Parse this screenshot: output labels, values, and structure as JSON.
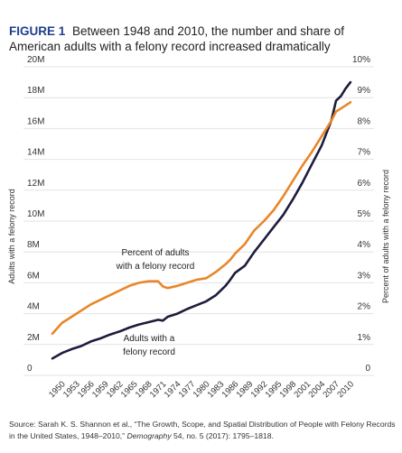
{
  "figure": {
    "label": "FIGURE 1",
    "title": "Between 1948 and 2010, the number and share of American adults with a felony record increased dramatically"
  },
  "source": {
    "prefix": "Source: Sarah K. S. Shannon et al., “The Growth, Scope, and Spatial Distribution of People with Felony Records in the United States, 1948–2010,” ",
    "journal": "Demography",
    "suffix": " 54, no. 5 (2017): 1795–1818."
  },
  "chart_data": {
    "type": "line",
    "ylabel": "Adults with a felony record",
    "y2label": "Percent of adults with a felony record",
    "ylim": [
      0,
      20000000
    ],
    "y2lim": [
      0,
      10
    ],
    "y_ticks": [
      {
        "value": 0,
        "label": "0"
      },
      {
        "value": 2000000,
        "label": "2M"
      },
      {
        "value": 4000000,
        "label": "4M"
      },
      {
        "value": 6000000,
        "label": "6M"
      },
      {
        "value": 8000000,
        "label": "8M"
      },
      {
        "value": 10000000,
        "label": "10M"
      },
      {
        "value": 12000000,
        "label": "12M"
      },
      {
        "value": 14000000,
        "label": "14M"
      },
      {
        "value": 16000000,
        "label": "16M"
      },
      {
        "value": 18000000,
        "label": "18M"
      },
      {
        "value": 20000000,
        "label": "20M"
      }
    ],
    "y2_ticks": [
      {
        "value": 0,
        "label": "0"
      },
      {
        "value": 1,
        "label": "1%"
      },
      {
        "value": 2,
        "label": "2%"
      },
      {
        "value": 3,
        "label": "3%"
      },
      {
        "value": 4,
        "label": "4%"
      },
      {
        "value": 5,
        "label": "5%"
      },
      {
        "value": 6,
        "label": "6%"
      },
      {
        "value": 7,
        "label": "7%"
      },
      {
        "value": 8,
        "label": "8%"
      },
      {
        "value": 9,
        "label": "9%"
      },
      {
        "value": 10,
        "label": "10%"
      }
    ],
    "x_range": [
      1948,
      2010
    ],
    "x_ticks": [
      1950,
      1953,
      1956,
      1959,
      1962,
      1965,
      1968,
      1971,
      1974,
      1977,
      1980,
      1983,
      1986,
      1989,
      1992,
      1995,
      1998,
      2001,
      2004,
      2007,
      2010
    ],
    "grid": "horizontal",
    "series": [
      {
        "name": "Adults with a felony record",
        "axis": "left",
        "color": "#1c1c3c",
        "label_lines": [
          "Adults with a",
          "felony record"
        ],
        "x": [
          1948,
          1950,
          1952,
          1954,
          1956,
          1958,
          1960,
          1962,
          1964,
          1966,
          1968,
          1970,
          1971,
          1972,
          1974,
          1976,
          1978,
          1980,
          1982,
          1984,
          1985,
          1986,
          1988,
          1990,
          1992,
          1994,
          1996,
          1998,
          2000,
          2002,
          2004,
          2006,
          2007,
          2008,
          2009,
          2010
        ],
        "y": [
          1100000,
          1450000,
          1700000,
          1900000,
          2200000,
          2400000,
          2650000,
          2850000,
          3100000,
          3300000,
          3450000,
          3600000,
          3550000,
          3800000,
          4000000,
          4300000,
          4550000,
          4800000,
          5200000,
          5800000,
          6200000,
          6650000,
          7100000,
          8000000,
          8800000,
          9600000,
          10400000,
          11400000,
          12500000,
          13700000,
          14900000,
          16500000,
          17800000,
          18100000,
          18600000,
          19000000
        ]
      },
      {
        "name": "Percent of adults with a felony record",
        "axis": "right",
        "color": "#e8872a",
        "label_lines": [
          "Percent of adults",
          "with a felony record"
        ],
        "x": [
          1948,
          1950,
          1952,
          1954,
          1956,
          1958,
          1960,
          1962,
          1964,
          1966,
          1968,
          1970,
          1971,
          1972,
          1974,
          1976,
          1978,
          1980,
          1982,
          1984,
          1985,
          1986,
          1988,
          1990,
          1992,
          1994,
          1996,
          1998,
          2000,
          2002,
          2004,
          2006,
          2007,
          2008,
          2009,
          2010
        ],
        "y": [
          1.35,
          1.7,
          1.9,
          2.1,
          2.3,
          2.45,
          2.6,
          2.75,
          2.9,
          3.0,
          3.05,
          3.05,
          2.88,
          2.83,
          2.9,
          3.0,
          3.1,
          3.15,
          3.35,
          3.6,
          3.75,
          3.95,
          4.25,
          4.7,
          5.0,
          5.35,
          5.8,
          6.3,
          6.8,
          7.25,
          7.75,
          8.25,
          8.55,
          8.65,
          8.75,
          8.85
        ]
      }
    ]
  },
  "colors": {
    "title_accent": "#1f3f8c",
    "line_adults": "#1c1c3c",
    "line_percent": "#e8872a",
    "grid": "#e3e3e3"
  }
}
